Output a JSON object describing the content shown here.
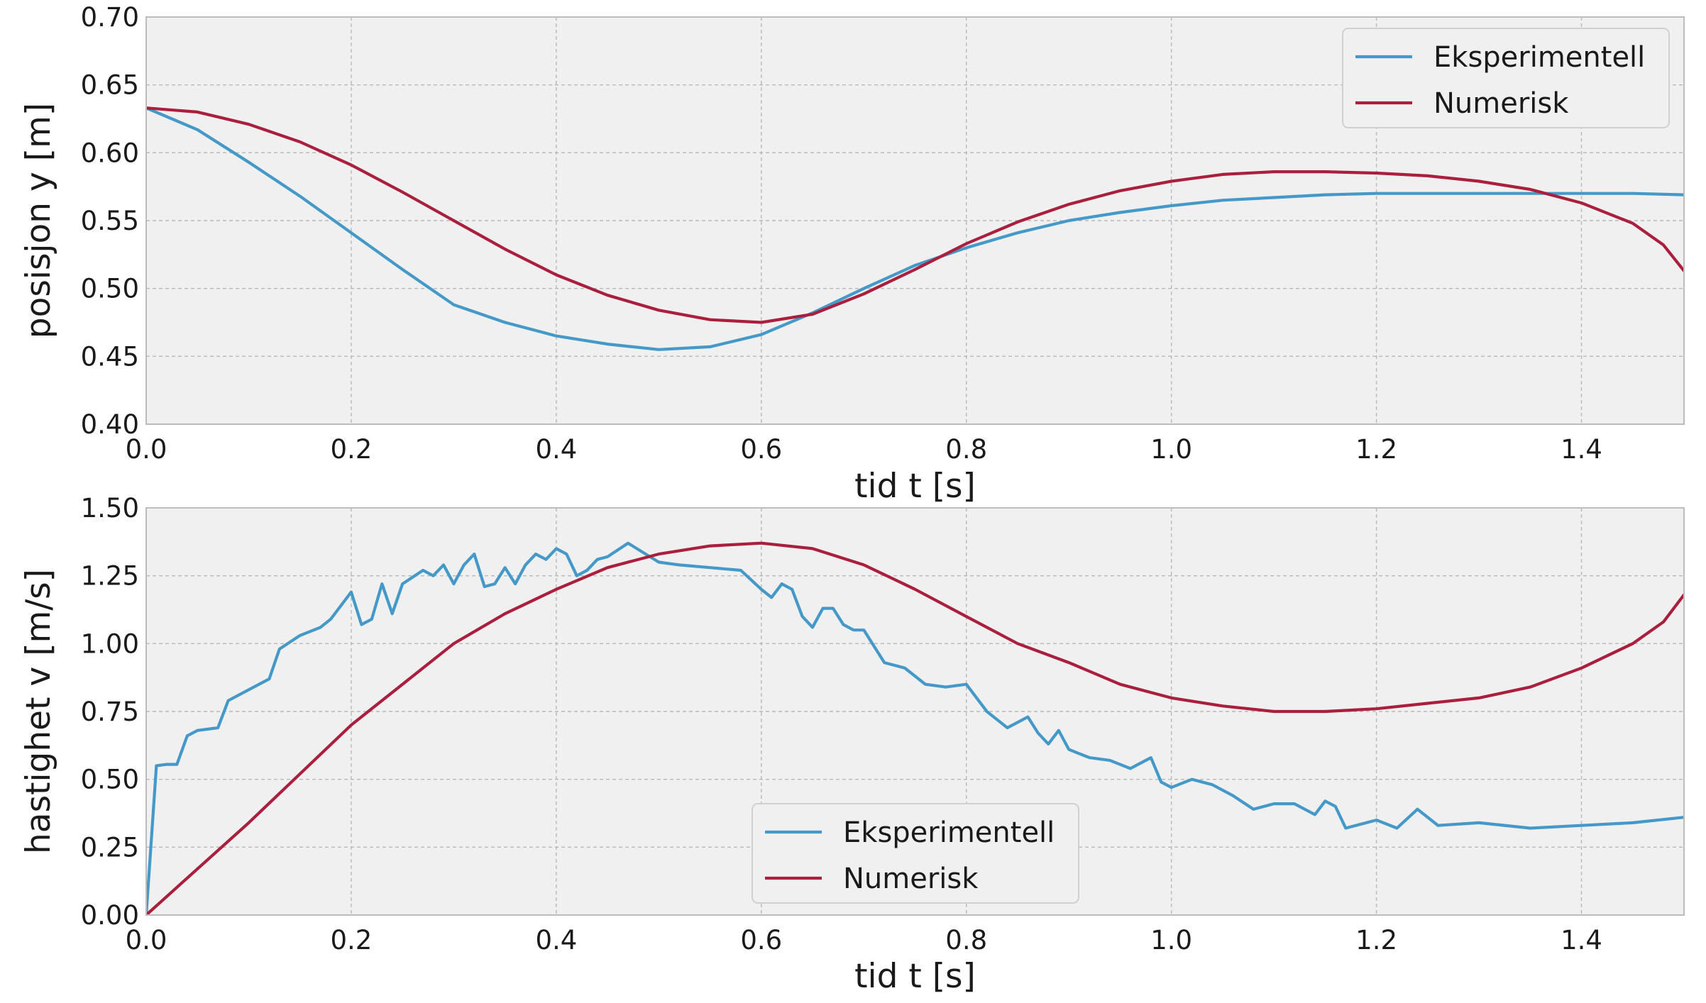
{
  "chart_data": [
    {
      "type": "line",
      "xlabel": "tid t [s]",
      "ylabel": "posisjon y [m]",
      "xlim": [
        0.0,
        1.5
      ],
      "ylim": [
        0.4,
        0.7
      ],
      "xticks": [
        "0.0",
        "0.2",
        "0.4",
        "0.6",
        "0.8",
        "1.0",
        "1.2",
        "1.4"
      ],
      "yticks": [
        "0.40",
        "0.45",
        "0.50",
        "0.55",
        "0.60",
        "0.65",
        "0.70"
      ],
      "grid": true,
      "legend_position": "upper-right",
      "series": [
        {
          "name": "Eksperimentell",
          "color": "#4499c8",
          "x": [
            0.0,
            0.05,
            0.1,
            0.15,
            0.2,
            0.25,
            0.3,
            0.35,
            0.4,
            0.45,
            0.5,
            0.55,
            0.6,
            0.65,
            0.7,
            0.75,
            0.8,
            0.85,
            0.9,
            0.95,
            1.0,
            1.05,
            1.1,
            1.15,
            1.2,
            1.25,
            1.3,
            1.35,
            1.4,
            1.45,
            1.5
          ],
          "y": [
            0.633,
            0.617,
            0.593,
            0.568,
            0.541,
            0.514,
            0.488,
            0.475,
            0.465,
            0.459,
            0.455,
            0.457,
            0.466,
            0.482,
            0.5,
            0.517,
            0.53,
            0.541,
            0.55,
            0.556,
            0.561,
            0.565,
            0.567,
            0.569,
            0.57,
            0.57,
            0.57,
            0.57,
            0.57,
            0.57,
            0.569
          ]
        },
        {
          "name": "Numerisk",
          "color": "#aa1f3d",
          "x": [
            0.0,
            0.05,
            0.1,
            0.15,
            0.2,
            0.25,
            0.3,
            0.35,
            0.4,
            0.45,
            0.5,
            0.55,
            0.6,
            0.65,
            0.7,
            0.75,
            0.8,
            0.85,
            0.9,
            0.95,
            1.0,
            1.05,
            1.1,
            1.15,
            1.2,
            1.25,
            1.3,
            1.35,
            1.4,
            1.45,
            1.48,
            1.5
          ],
          "y": [
            0.633,
            0.63,
            0.621,
            0.608,
            0.591,
            0.571,
            0.55,
            0.529,
            0.51,
            0.495,
            0.484,
            0.477,
            0.475,
            0.481,
            0.496,
            0.514,
            0.533,
            0.549,
            0.562,
            0.572,
            0.579,
            0.584,
            0.586,
            0.586,
            0.585,
            0.583,
            0.579,
            0.573,
            0.563,
            0.548,
            0.532,
            0.513
          ]
        }
      ]
    },
    {
      "type": "line",
      "xlabel": "tid t [s]",
      "ylabel": "hastighet v [m/s]",
      "xlim": [
        0.0,
        1.5
      ],
      "ylim": [
        0.0,
        1.5
      ],
      "xticks": [
        "0.0",
        "0.2",
        "0.4",
        "0.6",
        "0.8",
        "1.0",
        "1.2",
        "1.4"
      ],
      "yticks": [
        "0.00",
        "0.25",
        "0.50",
        "0.75",
        "1.00",
        "1.25",
        "1.50"
      ],
      "grid": true,
      "legend_position": "lower-center",
      "series": [
        {
          "name": "Eksperimentell",
          "color": "#4499c8",
          "x": [
            0.0,
            0.01,
            0.02,
            0.03,
            0.04,
            0.05,
            0.07,
            0.08,
            0.1,
            0.12,
            0.13,
            0.15,
            0.17,
            0.18,
            0.2,
            0.21,
            0.22,
            0.23,
            0.24,
            0.25,
            0.27,
            0.28,
            0.29,
            0.3,
            0.31,
            0.32,
            0.33,
            0.34,
            0.35,
            0.36,
            0.37,
            0.38,
            0.39,
            0.4,
            0.41,
            0.42,
            0.43,
            0.44,
            0.45,
            0.47,
            0.5,
            0.52,
            0.55,
            0.58,
            0.6,
            0.61,
            0.62,
            0.63,
            0.64,
            0.65,
            0.66,
            0.67,
            0.68,
            0.69,
            0.7,
            0.72,
            0.74,
            0.76,
            0.78,
            0.8,
            0.82,
            0.84,
            0.86,
            0.87,
            0.88,
            0.89,
            0.9,
            0.92,
            0.94,
            0.96,
            0.98,
            0.99,
            1.0,
            1.02,
            1.04,
            1.06,
            1.08,
            1.1,
            1.12,
            1.14,
            1.15,
            1.16,
            1.17,
            1.2,
            1.22,
            1.24,
            1.26,
            1.3,
            1.35,
            1.4,
            1.45,
            1.5
          ],
          "y": [
            0.0,
            0.55,
            0.555,
            0.555,
            0.66,
            0.68,
            0.69,
            0.79,
            0.83,
            0.87,
            0.98,
            1.03,
            1.06,
            1.09,
            1.19,
            1.07,
            1.09,
            1.22,
            1.11,
            1.22,
            1.27,
            1.25,
            1.29,
            1.22,
            1.29,
            1.33,
            1.21,
            1.22,
            1.28,
            1.22,
            1.29,
            1.33,
            1.31,
            1.35,
            1.33,
            1.25,
            1.27,
            1.31,
            1.32,
            1.37,
            1.3,
            1.29,
            1.28,
            1.27,
            1.2,
            1.17,
            1.22,
            1.2,
            1.1,
            1.06,
            1.13,
            1.13,
            1.07,
            1.05,
            1.05,
            0.93,
            0.91,
            0.85,
            0.84,
            0.85,
            0.75,
            0.69,
            0.73,
            0.67,
            0.63,
            0.68,
            0.61,
            0.58,
            0.57,
            0.54,
            0.58,
            0.49,
            0.47,
            0.5,
            0.48,
            0.44,
            0.39,
            0.41,
            0.41,
            0.37,
            0.42,
            0.4,
            0.32,
            0.35,
            0.32,
            0.39,
            0.33,
            0.34,
            0.32,
            0.33,
            0.34,
            0.36
          ]
        },
        {
          "name": "Numerisk",
          "color": "#aa1f3d",
          "x": [
            0.0,
            0.05,
            0.1,
            0.15,
            0.2,
            0.25,
            0.3,
            0.35,
            0.4,
            0.45,
            0.5,
            0.55,
            0.6,
            0.65,
            0.7,
            0.75,
            0.8,
            0.85,
            0.9,
            0.95,
            1.0,
            1.05,
            1.1,
            1.15,
            1.2,
            1.25,
            1.3,
            1.35,
            1.4,
            1.45,
            1.48,
            1.5
          ],
          "y": [
            0.0,
            0.17,
            0.34,
            0.52,
            0.7,
            0.85,
            1.0,
            1.11,
            1.2,
            1.28,
            1.33,
            1.36,
            1.37,
            1.35,
            1.29,
            1.2,
            1.1,
            1.0,
            0.93,
            0.85,
            0.8,
            0.77,
            0.75,
            0.75,
            0.76,
            0.78,
            0.8,
            0.84,
            0.91,
            1.0,
            1.08,
            1.18
          ]
        }
      ]
    }
  ]
}
